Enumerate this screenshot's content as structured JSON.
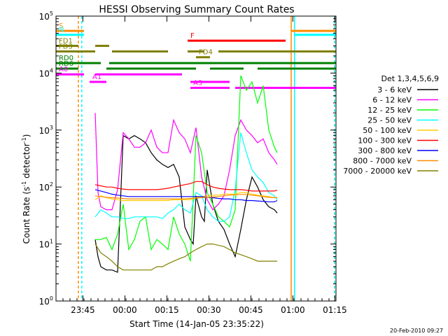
{
  "chart_data": {
    "type": "line",
    "title": "HESSI Observing Summary Count Rates",
    "ylabel_main": "Count Rate (s",
    "ylabel_sup": "-1",
    "ylabel_tail": " detector",
    "ylabel_end": ")",
    "xlabel": "Start Time (14-Jan-05 23:35:22)",
    "footer": "20-Feb-2010 09:27",
    "y_scale": "log",
    "ylim": [
      1,
      100000
    ],
    "y_ticks": [
      {
        "base": "10",
        "exp": "0",
        "value": 1
      },
      {
        "base": "10",
        "exp": "1",
        "value": 10
      },
      {
        "base": "10",
        "exp": "2",
        "value": 100
      },
      {
        "base": "10",
        "exp": "3",
        "value": 1000
      },
      {
        "base": "10",
        "exp": "4",
        "value": 10000
      },
      {
        "base": "10",
        "exp": "5",
        "value": 100000
      }
    ],
    "x_minutes_range": [
      0,
      100
    ],
    "x_ticks": [
      {
        "label": "23:45",
        "minutes": 9.6
      },
      {
        "label": "00:00",
        "minutes": 24.6
      },
      {
        "label": "00:15",
        "minutes": 39.6
      },
      {
        "label": "00:30",
        "minutes": 54.6
      },
      {
        "label": "00:45",
        "minutes": 69.6
      },
      {
        "label": "01:00",
        "minutes": 84.6
      },
      {
        "label": "01:15",
        "minutes": 99.6
      }
    ],
    "legend_title": "Det 1,3,4,5,6,9",
    "series": [
      {
        "name": "3 - 6 keV",
        "color": "#000000",
        "x": [
          14,
          15,
          16,
          18,
          20,
          22,
          24,
          26,
          28,
          30,
          32,
          34,
          36,
          38,
          40,
          42,
          44,
          46,
          48,
          49,
          50,
          52,
          53,
          54,
          56,
          58,
          60,
          62,
          64,
          66,
          68,
          70,
          72,
          74,
          76,
          78,
          79
        ],
        "y": [
          12,
          6,
          4,
          3.5,
          3.5,
          3.2,
          800,
          700,
          800,
          700,
          600,
          400,
          300,
          250,
          220,
          250,
          150,
          20,
          12,
          10,
          70,
          30,
          25,
          200,
          50,
          25,
          18,
          10,
          6,
          18,
          60,
          150,
          100,
          60,
          45,
          40,
          35
        ]
      },
      {
        "name": "6 - 12 keV",
        "color": "#ff00ff",
        "x": [
          14,
          15,
          16,
          18,
          20,
          22,
          24,
          26,
          28,
          30,
          32,
          34,
          36,
          38,
          40,
          42,
          44,
          46,
          48,
          50,
          52,
          54,
          56,
          58,
          60,
          62,
          64,
          66,
          68,
          70,
          72,
          74,
          76,
          78,
          79
        ],
        "y": [
          2000,
          80,
          45,
          40,
          40,
          90,
          900,
          700,
          500,
          500,
          600,
          1000,
          500,
          400,
          400,
          1500,
          900,
          700,
          400,
          1100,
          150,
          60,
          40,
          50,
          70,
          200,
          800,
          1500,
          1000,
          800,
          600,
          700,
          400,
          300,
          250
        ]
      },
      {
        "name": "12 - 25 keV",
        "color": "#00ff00",
        "x": [
          14,
          16,
          18,
          20,
          22,
          24,
          26,
          28,
          30,
          32,
          34,
          36,
          38,
          40,
          42,
          44,
          46,
          48,
          50,
          52,
          54,
          56,
          58,
          60,
          62,
          64,
          66,
          68,
          70,
          72,
          74,
          76,
          78,
          79
        ],
        "y": [
          12,
          12,
          13,
          8,
          15,
          50,
          8,
          12,
          25,
          30,
          8,
          12,
          10,
          8,
          30,
          15,
          10,
          5,
          800,
          400,
          80,
          50,
          30,
          25,
          20,
          40,
          9000,
          5000,
          7000,
          3000,
          6000,
          1000,
          500,
          400
        ]
      },
      {
        "name": "25 - 50 keV",
        "color": "#00ffff",
        "x": [
          14,
          16,
          18,
          20,
          22,
          24,
          26,
          28,
          30,
          32,
          34,
          36,
          38,
          40,
          42,
          44,
          46,
          48,
          50,
          52,
          54,
          56,
          58,
          60,
          62,
          64,
          66,
          68,
          70,
          72,
          74,
          76,
          78,
          79
        ],
        "y": [
          30,
          40,
          35,
          30,
          30,
          28,
          28,
          30,
          30,
          30,
          30,
          30,
          28,
          35,
          40,
          50,
          40,
          35,
          80,
          70,
          40,
          30,
          25,
          25,
          30,
          90,
          900,
          400,
          200,
          150,
          120,
          80,
          70,
          60
        ]
      },
      {
        "name": "50 - 100 keV",
        "color": "#ffcc00",
        "x": [
          14,
          16,
          18,
          20,
          22,
          24,
          26,
          28,
          30,
          32,
          34,
          36,
          38,
          40,
          42,
          44,
          46,
          48,
          50,
          52,
          54,
          56,
          58,
          60,
          62,
          64,
          66,
          68,
          70,
          72,
          74,
          76,
          78,
          79
        ],
        "y": [
          60,
          70,
          65,
          62,
          60,
          58,
          58,
          58,
          58,
          58,
          58,
          58,
          58,
          58,
          60,
          60,
          60,
          60,
          65,
          68,
          70,
          72,
          72,
          75,
          75,
          75,
          80,
          80,
          75,
          72,
          70,
          68,
          65,
          65
        ]
      },
      {
        "name": "100 - 300 keV",
        "color": "#ff0000",
        "x": [
          14,
          16,
          18,
          20,
          22,
          24,
          26,
          28,
          30,
          32,
          34,
          36,
          38,
          40,
          42,
          44,
          46,
          48,
          50,
          52,
          54,
          56,
          58,
          60,
          62,
          64,
          66,
          68,
          70,
          72,
          74,
          76,
          78,
          79
        ],
        "y": [
          110,
          105,
          100,
          100,
          95,
          92,
          90,
          90,
          90,
          90,
          90,
          90,
          92,
          95,
          100,
          105,
          110,
          115,
          125,
          125,
          110,
          100,
          95,
          92,
          90,
          90,
          90,
          88,
          85,
          85,
          85,
          85,
          85,
          88
        ]
      },
      {
        "name": "300 - 800 keV",
        "color": "#0000ff",
        "x": [
          14,
          16,
          18,
          20,
          22,
          24,
          26,
          28,
          30,
          32,
          34,
          36,
          38,
          40,
          42,
          44,
          46,
          48,
          50,
          52,
          54,
          56,
          58,
          60,
          62,
          64,
          66,
          68,
          70,
          72,
          74,
          76,
          78,
          79
        ],
        "y": [
          90,
          85,
          80,
          75,
          72,
          70,
          68,
          68,
          68,
          68,
          68,
          68,
          68,
          68,
          68,
          68,
          68,
          68,
          68,
          68,
          66,
          65,
          63,
          62,
          62,
          60,
          60,
          58,
          58,
          57,
          56,
          55,
          55,
          58
        ]
      },
      {
        "name": "800 - 7000 keV",
        "color": "#ff8c00",
        "x": [
          14,
          16,
          18,
          20,
          22,
          24,
          26,
          28,
          30,
          32,
          34,
          36,
          38,
          40,
          42,
          44,
          46,
          48,
          50,
          52,
          54,
          56,
          58,
          60,
          62,
          64,
          66,
          68,
          70,
          72,
          74,
          76,
          78,
          79
        ],
        "y": [
          70,
          68,
          66,
          65,
          64,
          63,
          62,
          62,
          62,
          62,
          62,
          62,
          62,
          62,
          62,
          62,
          62,
          63,
          64,
          65,
          66,
          67,
          68,
          70,
          72,
          73,
          74,
          74,
          72,
          70,
          68,
          66,
          65,
          65
        ]
      },
      {
        "name": "7000 - 20000 keV",
        "color": "#808000",
        "x": [
          14,
          16,
          18,
          20,
          22,
          24,
          26,
          28,
          30,
          32,
          34,
          36,
          38,
          40,
          42,
          44,
          46,
          48,
          50,
          52,
          54,
          56,
          58,
          60,
          62,
          64,
          66,
          68,
          70,
          72,
          74,
          76,
          78,
          79
        ],
        "y": [
          10,
          7,
          6,
          5,
          4,
          3.5,
          3.5,
          3.5,
          3.5,
          3.5,
          3.5,
          4,
          4,
          4.5,
          5,
          5.5,
          6,
          7,
          8,
          9,
          10,
          10,
          9.5,
          9,
          8,
          7,
          6.5,
          6,
          5.5,
          5,
          5,
          5,
          5,
          5
        ]
      }
    ],
    "state_bars": [
      {
        "label": "S",
        "color": "#ff8c00",
        "segments": [
          [
            0,
            10
          ],
          [
            84,
            100
          ]
        ],
        "y": 55000
      },
      {
        "label": "N",
        "color": "#00ffff",
        "segments": [
          [
            0,
            10
          ],
          [
            85,
            100
          ]
        ],
        "y": 47000
      },
      {
        "label": "F",
        "color": "#ff0000",
        "segments": [
          [
            47,
            82
          ]
        ],
        "y": 37000
      },
      {
        "label": "FD1",
        "color": "#808000",
        "segments": [
          [
            0,
            8
          ],
          [
            14,
            19
          ]
        ],
        "y": 30000
      },
      {
        "label": "FD3",
        "color": "#808000",
        "segments": [
          [
            0,
            14
          ],
          [
            20,
            40
          ],
          [
            47,
            53
          ],
          [
            58,
            100
          ]
        ],
        "y": 24000
      },
      {
        "label": "FD4",
        "color": "#808000",
        "segments": [
          [
            50,
            55
          ]
        ],
        "y": 19000
      },
      {
        "label": "RD0",
        "color": "#008000",
        "segments": [
          [
            0,
            16
          ],
          [
            19,
            100
          ]
        ],
        "y": 15000
      },
      {
        "label": "RD6",
        "color": "#008000",
        "segments": [
          [
            0,
            8
          ],
          [
            18,
            50
          ],
          [
            55,
            67
          ],
          [
            72,
            100
          ]
        ],
        "y": 12000
      },
      {
        "label": "A0",
        "color": "#ff00ff",
        "segments": [
          [
            0,
            10
          ],
          [
            14,
            45
          ]
        ],
        "y": 9500
      },
      {
        "label": "A1",
        "color": "#ff00ff",
        "segments": [
          [
            12,
            18
          ],
          [
            48,
            62
          ]
        ],
        "y": 7000
      },
      {
        "label": "A3",
        "color": "#ff00ff",
        "segments": [
          [
            48,
            62
          ],
          [
            64,
            100
          ]
        ],
        "y": 5500
      }
    ],
    "vertical_markers": [
      {
        "minutes": 8,
        "color": "#ff8c00",
        "style": "dashed"
      },
      {
        "minutes": 9.2,
        "color": "#00ffff",
        "style": "dashed"
      },
      {
        "minutes": 84,
        "color": "#ff8c00",
        "style": "solid"
      },
      {
        "minutes": 85.2,
        "color": "#00ffff",
        "style": "solid"
      },
      {
        "minutes": 101.5,
        "color": "#ff8c00",
        "style": "dashed"
      },
      {
        "minutes": 102.3,
        "color": "#00ffff",
        "style": "dashed"
      }
    ]
  }
}
